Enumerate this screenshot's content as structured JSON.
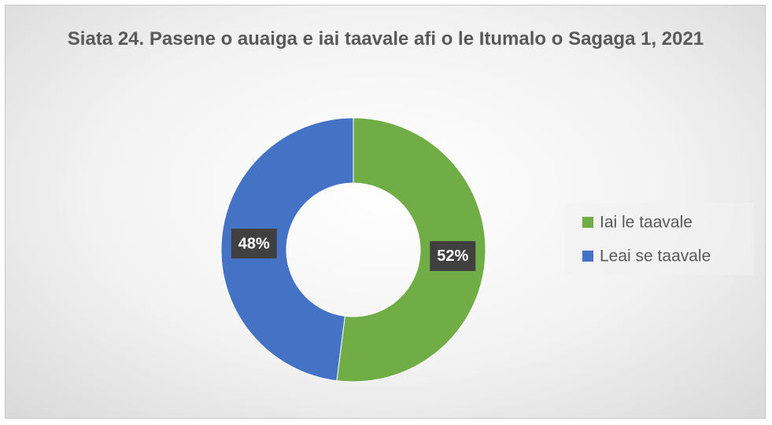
{
  "chart_data": {
    "type": "donut",
    "title": "Siata 24. Pasene o auaiga e iai taavale afi o le Itumalo o Sagaga 1, 2021",
    "categories": [
      "Iai le taavale",
      "Leai se taavale"
    ],
    "values": [
      52,
      48
    ],
    "value_labels": [
      "52%",
      "48%"
    ],
    "colors": [
      "#70ad47",
      "#4472c4"
    ],
    "legend": "right"
  }
}
